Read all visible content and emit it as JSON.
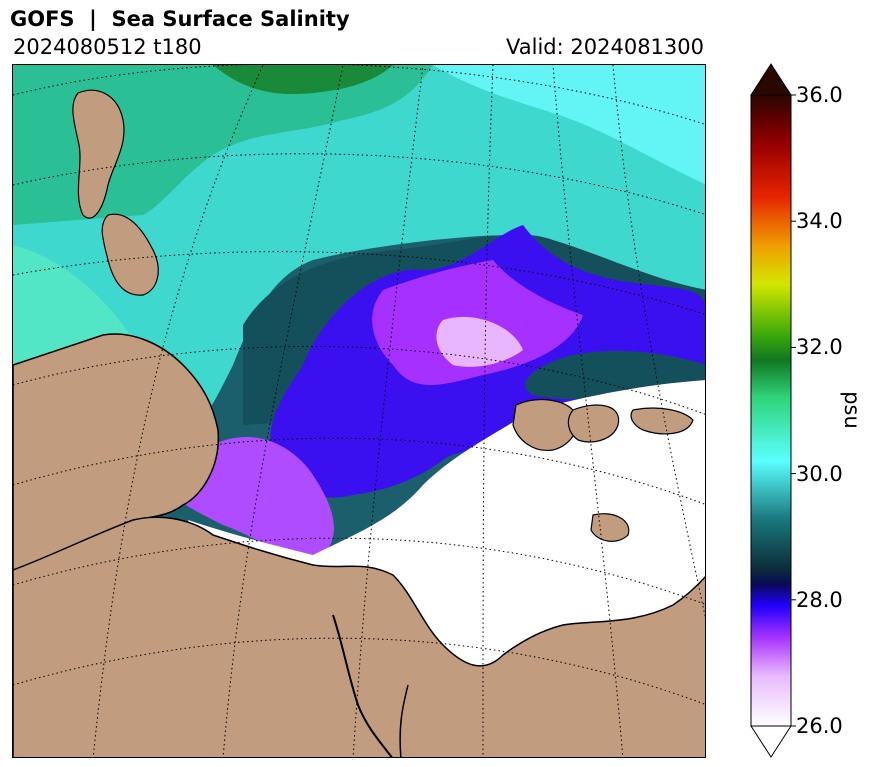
{
  "header": {
    "title": "GOFS  |  Sea Surface Salinity",
    "run": "2024080512 t180",
    "valid": "Valid: 2024081300"
  },
  "colorbar": {
    "unit": "psu",
    "min": 26.0,
    "max": 36.0,
    "extend": "both",
    "ticks": [
      {
        "value": 26.0,
        "label": "26.0"
      },
      {
        "value": 28.0,
        "label": "28.0"
      },
      {
        "value": 30.0,
        "label": "30.0"
      },
      {
        "value": 32.0,
        "label": "32.0"
      },
      {
        "value": 34.0,
        "label": "34.0"
      },
      {
        "value": 36.0,
        "label": "36.0"
      }
    ],
    "stops": [
      {
        "value": 26.0,
        "color": "#ffffff"
      },
      {
        "value": 26.8,
        "color": "#e8b8ff"
      },
      {
        "value": 27.4,
        "color": "#a733ff"
      },
      {
        "value": 27.9,
        "color": "#2200ff"
      },
      {
        "value": 28.25,
        "color": "#0a0a55"
      },
      {
        "value": 28.5,
        "color": "#0b2e3a"
      },
      {
        "value": 29.3,
        "color": "#1b7b80"
      },
      {
        "value": 30.2,
        "color": "#5affff"
      },
      {
        "value": 31.2,
        "color": "#2fd47a"
      },
      {
        "value": 31.8,
        "color": "#117722"
      },
      {
        "value": 32.2,
        "color": "#3caa0a"
      },
      {
        "value": 33.0,
        "color": "#d2e600"
      },
      {
        "value": 33.6,
        "color": "#f0a000"
      },
      {
        "value": 34.4,
        "color": "#e62300"
      },
      {
        "value": 35.2,
        "color": "#990000"
      },
      {
        "value": 35.7,
        "color": "#550000"
      },
      {
        "value": 36.0,
        "color": "#2a0800"
      }
    ]
  },
  "map": {
    "land_color": "#c19c7e",
    "low_salinity_color": "#ffffff",
    "grid_style": "dotted"
  }
}
